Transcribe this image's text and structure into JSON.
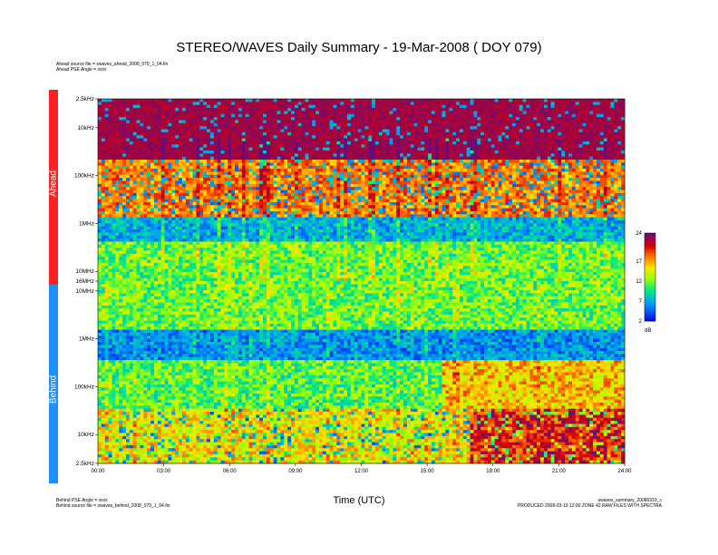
{
  "chart_data": {
    "type": "heatmap",
    "title": "STEREO/WAVES Daily Summary - 19-Mar-2008 ( DOY 079)",
    "xlabel": "Time (UTC)",
    "x_ticks": [
      "00:00",
      "03:00",
      "06:00",
      "09:00",
      "12:00",
      "15:00",
      "18:00",
      "21:00",
      "24:00"
    ],
    "x_range_hours": [
      0,
      24
    ],
    "panels": [
      {
        "name": "Ahead",
        "color": "#ff2020",
        "freq_ticks": [
          "2.5kHz",
          "10kHz",
          "100kHz",
          "1MHz",
          "10MHz",
          "16MHz"
        ],
        "freq_range_hz": [
          2500,
          16000000
        ],
        "scale": "log"
      },
      {
        "name": "Behind",
        "color": "#1f8fff",
        "freq_ticks": [
          "10MHz",
          "1MHz",
          "100kHz",
          "10kHz",
          "2.5kHz"
        ],
        "freq_range_hz": [
          16000000,
          2500
        ],
        "scale": "log"
      }
    ],
    "colorbar": {
      "ticks": [
        24,
        17,
        12,
        7,
        2
      ],
      "range": [
        2,
        24
      ],
      "unit": "dB"
    }
  },
  "header": {
    "ahead_source": "Ahead source file = swaves_ahead_2008_079_1_04.fin",
    "ahead_angle": "Ahead PSE Angle = xxxx"
  },
  "footer": {
    "behind_angle": "Behind PSE Angle = xxxx",
    "behind_source": "Behind source file = swaves_behind_2008_079_1_04.fin",
    "summary_file": "swaves_summary_20080319_c",
    "produced": "PRODUCED 2008-03-19 12:00 ZONE 42 RAW FILES WITH SPECTRA"
  }
}
